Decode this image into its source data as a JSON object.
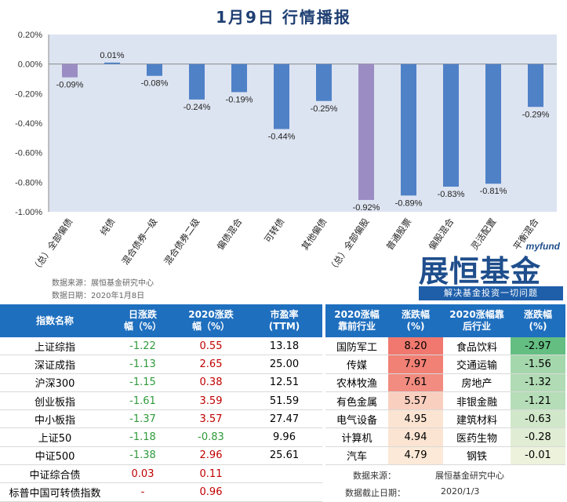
{
  "title": "1月9日  行情播报",
  "chart_data": {
    "type": "bar",
    "categories": [
      "（总）全部偏债",
      "纯债",
      "混合债券一级",
      "混合债券二级",
      "偏债混合",
      "可转债",
      "其他偏债",
      "（总）全部偏股",
      "普通股票",
      "偏股混合",
      "灵活配置",
      "平衡混合"
    ],
    "values": [
      -0.09,
      0.01,
      -0.08,
      -0.24,
      -0.19,
      -0.44,
      -0.25,
      -0.92,
      -0.89,
      -0.83,
      -0.81,
      -0.29
    ],
    "value_labels": [
      "-0.09%",
      "0.01%",
      "-0.08%",
      "-0.24%",
      "-0.19%",
      "-0.44%",
      "-0.25%",
      "-0.92%",
      "-0.89%",
      "-0.83%",
      "-0.81%",
      "-0.29%"
    ],
    "highlight_indices": [
      0,
      7
    ],
    "ylim": [
      -1.0,
      0.2
    ],
    "yticks": [
      "0.20%",
      "0.00%",
      "-0.20%",
      "-0.40%",
      "-0.60%",
      "-0.80%",
      "-1.00%"
    ],
    "ytick_values": [
      0.2,
      0.0,
      -0.2,
      -0.4,
      -0.6,
      -0.8,
      -1.0
    ],
    "grid": false,
    "colors": {
      "bar": "#4f81c7",
      "highlight": "#9b8dc4",
      "plot_bg": "#dde4f1"
    }
  },
  "source": {
    "line1": "数据来源：展恒基金研究中心",
    "line2": "数据日期：2020年1月8日"
  },
  "logo": {
    "myfund": "myfund",
    "brand": "展恒基金",
    "slogan": "解决基金投资一切问题"
  },
  "left_table": {
    "headers": [
      "指数名称",
      "日涨跌\n幅（%）",
      "2020涨跌\n幅（%）",
      "市盈率\n(TTM)"
    ],
    "rows": [
      {
        "name": "上证综指",
        "day": "-1.22",
        "ytd": "0.55",
        "pe": "13.18"
      },
      {
        "name": "深证成指",
        "day": "-1.13",
        "ytd": "2.65",
        "pe": "25.00"
      },
      {
        "name": "沪深300",
        "day": "-1.15",
        "ytd": "0.38",
        "pe": "12.51"
      },
      {
        "name": "创业板指",
        "day": "-1.61",
        "ytd": "3.59",
        "pe": "51.59"
      },
      {
        "name": "中小板指",
        "day": "-1.37",
        "ytd": "3.57",
        "pe": "27.47"
      },
      {
        "name": "上证50",
        "day": "-1.18",
        "ytd": "-0.83",
        "pe": "9.96"
      },
      {
        "name": "中证500",
        "day": "-1.38",
        "ytd": "2.96",
        "pe": "25.61"
      },
      {
        "name": "中证综合债",
        "day": "0.03",
        "ytd": "0.11",
        "pe": ""
      },
      {
        "name": "标普中国可转债指数",
        "day": "-",
        "ytd": "0.96",
        "pe": ""
      }
    ]
  },
  "right_table": {
    "headers": [
      "2020涨幅\n靠前行业",
      "涨跌幅\n(%)",
      "2020涨幅靠\n后行业",
      "涨跌幅\n(%)"
    ],
    "rows": [
      {
        "top": "国防军工",
        "top_chg": "8.20",
        "bot": "食品饮料",
        "bot_chg": "-2.97"
      },
      {
        "top": "传媒",
        "top_chg": "7.97",
        "bot": "交通运输",
        "bot_chg": "-1.56"
      },
      {
        "top": "农林牧渔",
        "top_chg": "7.61",
        "bot": "房地产",
        "bot_chg": "-1.32"
      },
      {
        "top": "有色金属",
        "top_chg": "5.57",
        "bot": "非银金融",
        "bot_chg": "-1.21"
      },
      {
        "top": "电气设备",
        "top_chg": "4.95",
        "bot": "建筑材料",
        "bot_chg": "-0.63"
      },
      {
        "top": "计算机",
        "top_chg": "4.94",
        "bot": "医药生物",
        "bot_chg": "-0.28"
      },
      {
        "top": "汽车",
        "top_chg": "4.79",
        "bot": "钢铁",
        "bot_chg": "-0.01"
      }
    ],
    "footer": {
      "src_label": "数据来源：",
      "src_value": "展恒基金研究中心",
      "date_label": "数据截止日期：",
      "date_value": "2020/1/3"
    }
  }
}
